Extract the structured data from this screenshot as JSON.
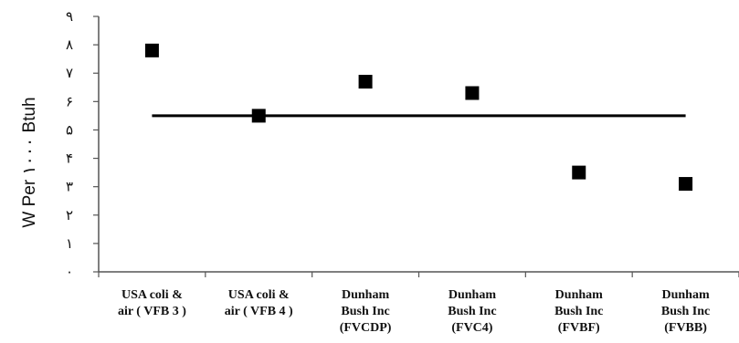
{
  "chart_data": {
    "type": "scatter",
    "ylabel": "W Per ١٠٠٠ Btuh",
    "ylim": [
      0,
      9
    ],
    "yticks": [
      0,
      1,
      2,
      3,
      4,
      5,
      6,
      7,
      8,
      9
    ],
    "ytick_labels": [
      "٠",
      "١",
      "٢",
      "٣",
      "۴",
      "۵",
      "۶",
      "٧",
      "٨",
      "٩"
    ],
    "categories": [
      [
        "USA coli &",
        "air ( VFB 3 )"
      ],
      [
        "USA coli &",
        "air ( VFB 4 )"
      ],
      [
        "Dunham",
        "Bush Inc",
        "(FVCDP)"
      ],
      [
        "Dunham",
        "Bush Inc",
        "(FVC4)"
      ],
      [
        "Dunham",
        "Bush Inc",
        "(FVBF)"
      ],
      [
        "Dunham",
        "Bush Inc",
        "(FVBB)"
      ]
    ],
    "series": [
      {
        "values": [
          7.8,
          5.5,
          6.7,
          6.3,
          3.5,
          3.1
        ],
        "marker": "square",
        "color": "#000000"
      }
    ],
    "reference_line": {
      "value": 5.5,
      "color": "#000000"
    },
    "grid": false
  }
}
